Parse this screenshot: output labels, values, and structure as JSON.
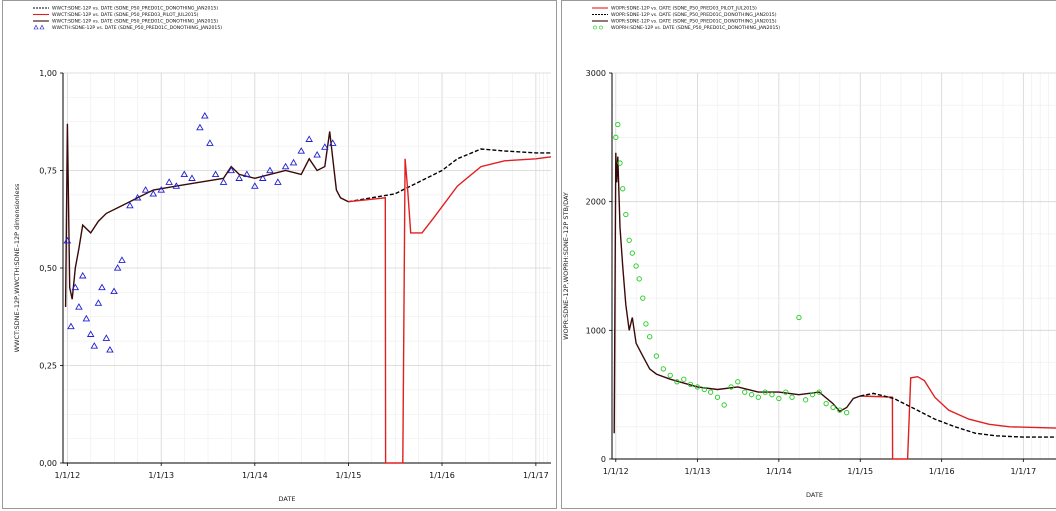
{
  "chart_data": [
    {
      "type": "line",
      "xlabel": "DATE",
      "ylabel": "WWCT:SDNE–12P,WWCTH:SDNE–12P   dimensionless",
      "ylim": [
        0,
        1
      ],
      "xlim": [
        "2011-12-15",
        "2017-03-01"
      ],
      "yticks": [
        "0,00",
        "0,25",
        "0,50",
        "0,75",
        "1,00"
      ],
      "yticks_values": [
        0,
        0.25,
        0.5,
        0.75,
        1.0
      ],
      "xticks": [
        "1/1/12",
        "1/1/13",
        "1/1/14",
        "1/1/15",
        "1/1/16",
        "1/1/17"
      ],
      "xticks_dates": [
        "2012-01-01",
        "2013-01-01",
        "2014-01-01",
        "2015-01-01",
        "2016-01-01",
        "2017-01-01"
      ],
      "grid": true,
      "legend_position": "top-left",
      "series": [
        {
          "name": "WWCT:SDNE-12P  vs.  DATE (SDNE_P50_PRED01C_DONOTHING_JAN2015)",
          "style": "dashed",
          "color": "#000000",
          "x": [
            "2015-01-01",
            "2015-07-01",
            "2015-10-01",
            "2016-01-01",
            "2016-03-01",
            "2016-06-01",
            "2016-09-01",
            "2017-01-01",
            "2017-03-01"
          ],
          "y": [
            0.67,
            0.69,
            0.72,
            0.75,
            0.78,
            0.805,
            0.8,
            0.795,
            0.795
          ]
        },
        {
          "name": "WWCT:SDNE-12P  vs.  DATE (SDNE_P50_PRED03_PILOT_JUL2015)",
          "style": "solid",
          "color": "#e02020",
          "x": [
            "2015-01-01",
            "2015-05-25",
            "2015-05-26",
            "2015-06-05",
            "2015-06-06",
            "2015-08-01",
            "2015-08-10",
            "2015-08-20",
            "2015-09-01",
            "2015-10-15",
            "2015-12-01",
            "2016-03-01",
            "2016-06-01",
            "2016-09-01",
            "2017-01-01",
            "2017-03-01"
          ],
          "y": [
            0.67,
            0.68,
            0.0,
            0.0,
            0.0,
            0.0,
            0.78,
            0.7,
            0.59,
            0.59,
            0.63,
            0.71,
            0.76,
            0.775,
            0.78,
            0.785
          ]
        },
        {
          "name": "WWCT:SDNE-12P  vs.  DATE (SDNE_P50_PRED01C_DONOTHING_JAN2015)",
          "style": "solid",
          "color": "#3a0a0a",
          "x": [
            "2011-12-25",
            "2012-01-01",
            "2012-01-10",
            "2012-01-20",
            "2012-02-01",
            "2012-02-15",
            "2012-03-01",
            "2012-04-01",
            "2012-05-01",
            "2012-06-01",
            "2012-08-01",
            "2012-10-01",
            "2012-12-01",
            "2013-03-01",
            "2013-06-01",
            "2013-09-01",
            "2013-10-01",
            "2013-11-01",
            "2014-01-01",
            "2014-03-01",
            "2014-05-01",
            "2014-07-01",
            "2014-08-01",
            "2014-09-01",
            "2014-10-01",
            "2014-10-20",
            "2014-11-01",
            "2014-11-15",
            "2014-12-01",
            "2015-01-01"
          ],
          "y": [
            0.4,
            0.87,
            0.45,
            0.42,
            0.5,
            0.55,
            0.61,
            0.59,
            0.62,
            0.64,
            0.66,
            0.68,
            0.7,
            0.71,
            0.72,
            0.73,
            0.76,
            0.74,
            0.73,
            0.74,
            0.75,
            0.74,
            0.78,
            0.75,
            0.76,
            0.85,
            0.78,
            0.7,
            0.68,
            0.67
          ]
        },
        {
          "name": "WWCTH:SDNE-12P  vs.  DATE (SDNE_P50_PRED01C_DONOTHING_JAN2015)",
          "style": "triangles",
          "color": "#2020d0",
          "x": [
            "2012-01-01",
            "2012-01-15",
            "2012-02-01",
            "2012-02-15",
            "2012-03-01",
            "2012-03-15",
            "2012-04-01",
            "2012-04-15",
            "2012-05-01",
            "2012-05-15",
            "2012-06-01",
            "2012-06-15",
            "2012-07-01",
            "2012-07-15",
            "2012-08-01",
            "2012-09-01",
            "2012-10-01",
            "2012-11-01",
            "2012-12-01",
            "2013-01-01",
            "2013-02-01",
            "2013-03-01",
            "2013-04-01",
            "2013-05-01",
            "2013-06-01",
            "2013-06-20",
            "2013-07-10",
            "2013-08-01",
            "2013-09-01",
            "2013-10-01",
            "2013-11-01",
            "2013-12-01",
            "2014-01-01",
            "2014-02-01",
            "2014-03-01",
            "2014-04-01",
            "2014-05-01",
            "2014-06-01",
            "2014-07-01",
            "2014-08-01",
            "2014-09-01",
            "2014-10-01",
            "2014-11-01"
          ],
          "y": [
            0.57,
            0.35,
            0.45,
            0.4,
            0.48,
            0.37,
            0.33,
            0.3,
            0.41,
            0.45,
            0.32,
            0.29,
            0.44,
            0.5,
            0.52,
            0.66,
            0.68,
            0.7,
            0.69,
            0.7,
            0.72,
            0.71,
            0.74,
            0.73,
            0.86,
            0.89,
            0.82,
            0.74,
            0.72,
            0.75,
            0.73,
            0.74,
            0.71,
            0.73,
            0.75,
            0.72,
            0.76,
            0.77,
            0.8,
            0.83,
            0.79,
            0.81,
            0.82
          ]
        }
      ]
    },
    {
      "type": "line",
      "xlabel": "DATE",
      "ylabel": "WOPR:SDNE–12P,WOPRH:SDNE–12P   STB/DAY",
      "ylim": [
        0,
        3000
      ],
      "xlim": [
        "2011-12-15",
        "2017-06-01"
      ],
      "yticks": [
        "0",
        "1000",
        "2000",
        "3000"
      ],
      "yticks_values": [
        0,
        1000,
        2000,
        3000
      ],
      "xticks": [
        "1/1/12",
        "1/1/13",
        "1/1/14",
        "1/1/15",
        "1/1/16",
        "1/1/17"
      ],
      "xticks_dates": [
        "2012-01-01",
        "2013-01-01",
        "2014-01-01",
        "2015-01-01",
        "2016-01-01",
        "2017-01-01"
      ],
      "grid": true,
      "legend_position": "top-left",
      "series": [
        {
          "name": "WOPR:SDNE-12P  vs.  DATE (SDNE_P50_PRED03_PILOT_JUL2015)",
          "style": "solid",
          "color": "#e02020",
          "x": [
            "2015-01-01",
            "2015-05-25",
            "2015-05-26",
            "2015-06-05",
            "2015-06-06",
            "2015-08-01",
            "2015-08-15",
            "2015-09-15",
            "2015-10-15",
            "2015-12-01",
            "2016-02-01",
            "2016-05-01",
            "2016-08-01",
            "2016-11-01",
            "2017-06-01"
          ],
          "y": [
            490,
            480,
            0,
            0,
            0,
            0,
            630,
            640,
            610,
            480,
            380,
            310,
            270,
            250,
            240
          ]
        },
        {
          "name": "WOPR:SDNE-12P  vs.  DATE (SDNE_P50_PRED01C_DONOTHING_JAN2015)",
          "style": "dashed",
          "color": "#000000",
          "x": [
            "2015-01-01",
            "2015-03-01",
            "2015-06-01",
            "2015-09-01",
            "2015-12-01",
            "2016-03-01",
            "2016-06-01",
            "2016-09-01",
            "2017-01-01",
            "2017-06-01"
          ],
          "y": [
            490,
            510,
            470,
            390,
            310,
            250,
            200,
            180,
            170,
            170
          ]
        },
        {
          "name": "WOPR:SDNE-12P  vs.  DATE (SDNE_P50_PRED01C_DONOTHING_JAN2015)",
          "style": "solid",
          "color": "#3a0a0a",
          "x": [
            "2011-12-25",
            "2012-01-01",
            "2012-01-05",
            "2012-01-10",
            "2012-01-20",
            "2012-02-01",
            "2012-02-15",
            "2012-03-01",
            "2012-03-15",
            "2012-04-01",
            "2012-05-01",
            "2012-06-01",
            "2012-07-01",
            "2012-09-01",
            "2012-11-01",
            "2013-01-01",
            "2013-04-01",
            "2013-07-01",
            "2013-10-01",
            "2014-01-01",
            "2014-04-01",
            "2014-07-01",
            "2014-09-01",
            "2014-10-01",
            "2014-11-01",
            "2014-12-01",
            "2015-01-01"
          ],
          "y": [
            200,
            2380,
            2150,
            2350,
            1800,
            1500,
            1200,
            1000,
            1100,
            900,
            800,
            700,
            660,
            620,
            590,
            560,
            540,
            560,
            520,
            520,
            500,
            520,
            430,
            370,
            400,
            470,
            490
          ]
        },
        {
          "name": "WOPRH:SDNE-12P  vs.  DATE (SDNE_P50_PRED01C_DONOTHING_JAN2015)",
          "style": "circles",
          "color": "#22cc22",
          "x": [
            "2012-01-01",
            "2012-01-10",
            "2012-01-20",
            "2012-02-01",
            "2012-02-15",
            "2012-03-01",
            "2012-03-15",
            "2012-04-01",
            "2012-04-15",
            "2012-05-01",
            "2012-05-15",
            "2012-06-01",
            "2012-07-01",
            "2012-08-01",
            "2012-09-01",
            "2012-10-01",
            "2012-11-01",
            "2012-12-01",
            "2013-01-01",
            "2013-02-01",
            "2013-03-01",
            "2013-04-01",
            "2013-05-01",
            "2013-06-01",
            "2013-07-01",
            "2013-08-01",
            "2013-09-01",
            "2013-10-01",
            "2013-11-01",
            "2013-12-01",
            "2014-01-01",
            "2014-02-01",
            "2014-03-01",
            "2014-04-01",
            "2014-05-01",
            "2014-06-01",
            "2014-07-01",
            "2014-08-01",
            "2014-09-01",
            "2014-10-01",
            "2014-11-01"
          ],
          "y": [
            2500,
            2600,
            2300,
            2100,
            1900,
            1700,
            1600,
            1500,
            1400,
            1250,
            1050,
            950,
            800,
            700,
            650,
            600,
            620,
            580,
            560,
            540,
            520,
            480,
            420,
            560,
            600,
            520,
            500,
            480,
            520,
            500,
            470,
            520,
            480,
            1100,
            460,
            500,
            520,
            430,
            400,
            380,
            360
          ]
        }
      ]
    }
  ]
}
